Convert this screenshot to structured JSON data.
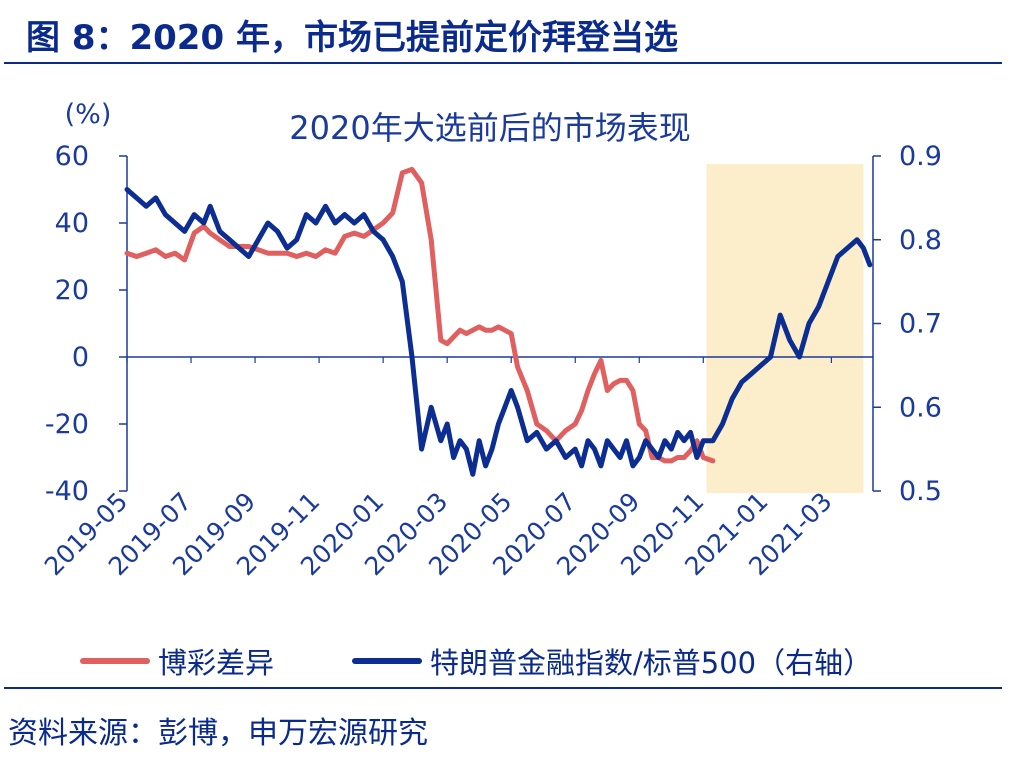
{
  "figure": {
    "title": "图 8：2020 年，市场已提前定价拜登当选",
    "source": "资料来源：彭博，申万宏源研究"
  },
  "colors": {
    "brand": "#0a2b8c",
    "betting": "#e06060",
    "index": "#0c2d91",
    "highlight": "#fdeecb",
    "axis": "#1a3a9c"
  },
  "chart_data": {
    "type": "line",
    "title": "2020年大选前后的市场表现",
    "ylabel": "(%)",
    "y2label": "",
    "xlabel": "",
    "x_ticks": [
      "2019-05",
      "2019-07",
      "2019-09",
      "2019-11",
      "2020-01",
      "2020-03",
      "2020-05",
      "2020-07",
      "2020-09",
      "2020-11",
      "2021-01",
      "2021-03"
    ],
    "y_ticks": [
      60,
      40,
      20,
      0,
      -20,
      -40
    ],
    "y2_ticks": [
      0.9,
      0.8,
      0.7,
      0.6,
      0.5
    ],
    "ylim": [
      -40,
      60
    ],
    "y2lim": [
      0.5,
      0.9
    ],
    "xlim": [
      0,
      23.3
    ],
    "highlight_x": [
      18.1,
      23.0
    ],
    "grid": false,
    "legend_position": "bottom",
    "series": [
      {
        "name": "博彩差异",
        "axis": "left",
        "x": [
          0,
          0.3,
          0.6,
          0.9,
          1.2,
          1.5,
          1.8,
          2.1,
          2.4,
          2.6,
          2.9,
          3.2,
          3.5,
          3.8,
          4.1,
          4.4,
          4.7,
          5.0,
          5.3,
          5.6,
          5.9,
          6.2,
          6.5,
          6.8,
          7.1,
          7.4,
          7.7,
          8.0,
          8.3,
          8.6,
          8.9,
          9.2,
          9.5,
          9.8,
          10.0,
          10.2,
          10.4,
          10.6,
          10.8,
          11.0,
          11.2,
          11.4,
          11.6,
          11.8,
          12.0,
          12.2,
          12.5,
          12.8,
          13.1,
          13.4,
          13.7,
          14.0,
          14.2,
          14.4,
          14.6,
          14.8,
          15.0,
          15.2,
          15.4,
          15.6,
          15.8,
          16.0,
          16.2,
          16.4,
          16.6,
          16.8,
          17.0,
          17.2,
          17.4,
          17.6,
          17.8,
          18.0,
          18.3
        ],
        "values": [
          31,
          30,
          31,
          32,
          30,
          31,
          29,
          37,
          39,
          37,
          35,
          33,
          33,
          33,
          32,
          31,
          31,
          31,
          30,
          31,
          30,
          32,
          31,
          36,
          37,
          36,
          38,
          40,
          43,
          55,
          56,
          52,
          35,
          5,
          4,
          6,
          8,
          7,
          8,
          9,
          8,
          8,
          9,
          8,
          7,
          -3,
          -10,
          -20,
          -22,
          -25,
          -22,
          -20,
          -16,
          -10,
          -5,
          -1,
          -10,
          -8,
          -7,
          -7,
          -10,
          -20,
          -22,
          -30,
          -30,
          -31,
          -31,
          -30,
          -30,
          -28,
          -25,
          -30,
          -31
        ],
        "color": "#e06060"
      },
      {
        "name": "特朗普金融指数/标普500（右轴）",
        "axis": "right",
        "x": [
          0,
          0.3,
          0.6,
          0.9,
          1.2,
          1.5,
          1.8,
          2.1,
          2.4,
          2.6,
          2.9,
          3.2,
          3.5,
          3.8,
          4.1,
          4.4,
          4.7,
          5.0,
          5.3,
          5.6,
          5.9,
          6.2,
          6.5,
          6.8,
          7.1,
          7.4,
          7.7,
          8.0,
          8.3,
          8.6,
          8.9,
          9.2,
          9.5,
          9.8,
          10.0,
          10.2,
          10.4,
          10.6,
          10.8,
          11.0,
          11.2,
          11.4,
          11.6,
          11.8,
          12.0,
          12.2,
          12.5,
          12.8,
          13.1,
          13.4,
          13.7,
          14.0,
          14.2,
          14.4,
          14.6,
          14.8,
          15.0,
          15.2,
          15.4,
          15.6,
          15.8,
          16.0,
          16.2,
          16.4,
          16.6,
          16.8,
          17.0,
          17.2,
          17.4,
          17.6,
          17.8,
          18.0,
          18.3,
          18.6,
          18.9,
          19.2,
          19.5,
          19.8,
          20.1,
          20.4,
          20.7,
          21.0,
          21.3,
          21.6,
          21.9,
          22.2,
          22.5,
          22.8,
          23.0,
          23.2
        ],
        "values": [
          0.86,
          0.85,
          0.84,
          0.85,
          0.83,
          0.82,
          0.81,
          0.83,
          0.82,
          0.84,
          0.81,
          0.8,
          0.79,
          0.78,
          0.8,
          0.82,
          0.81,
          0.79,
          0.8,
          0.83,
          0.82,
          0.84,
          0.82,
          0.83,
          0.82,
          0.83,
          0.81,
          0.8,
          0.78,
          0.75,
          0.66,
          0.55,
          0.6,
          0.56,
          0.58,
          0.54,
          0.56,
          0.55,
          0.52,
          0.56,
          0.53,
          0.55,
          0.58,
          0.6,
          0.62,
          0.6,
          0.56,
          0.57,
          0.55,
          0.56,
          0.54,
          0.55,
          0.53,
          0.56,
          0.55,
          0.53,
          0.56,
          0.55,
          0.54,
          0.56,
          0.53,
          0.54,
          0.56,
          0.55,
          0.54,
          0.56,
          0.55,
          0.57,
          0.56,
          0.57,
          0.54,
          0.56,
          0.56,
          0.58,
          0.61,
          0.63,
          0.64,
          0.65,
          0.66,
          0.71,
          0.68,
          0.66,
          0.7,
          0.72,
          0.75,
          0.78,
          0.79,
          0.8,
          0.79,
          0.77
        ]
      }
    ]
  }
}
